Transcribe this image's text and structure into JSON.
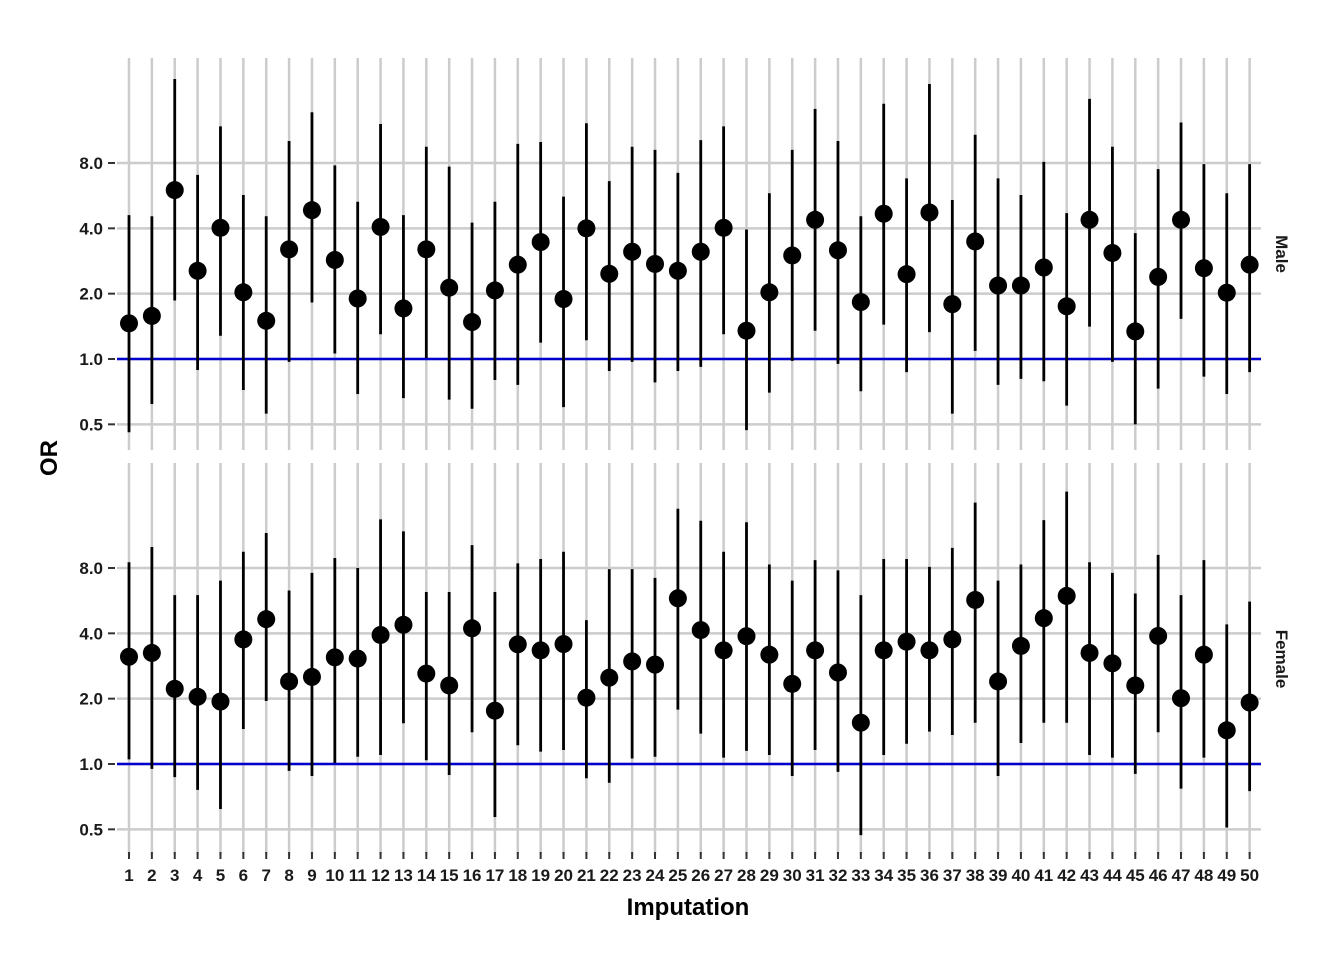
{
  "chart_data": {
    "type": "scatter",
    "subtype": "point-range",
    "title": "",
    "xlabel": "Imputation",
    "ylabel": "OR",
    "y_scale": "log2",
    "y_ticks": [
      0.5,
      1.0,
      2.0,
      4.0,
      8.0
    ],
    "y_tick_labels": [
      "0.5",
      "1.0",
      "2.0",
      "4.0",
      "8.0"
    ],
    "ylim": [
      0.42,
      25
    ],
    "x_categories": [
      "1",
      "2",
      "3",
      "4",
      "5",
      "6",
      "7",
      "8",
      "9",
      "10",
      "11",
      "12",
      "13",
      "14",
      "15",
      "16",
      "17",
      "18",
      "19",
      "20",
      "21",
      "22",
      "23",
      "24",
      "25",
      "26",
      "27",
      "28",
      "29",
      "30",
      "31",
      "32",
      "33",
      "34",
      "35",
      "36",
      "37",
      "38",
      "39",
      "40",
      "41",
      "42",
      "43",
      "44",
      "45",
      "46",
      "47",
      "48",
      "49",
      "50"
    ],
    "reference_line": {
      "y": 1.0,
      "color": "#0000CC"
    },
    "grid": true,
    "point_color": "#000000",
    "panels": [
      {
        "strip": "Male",
        "or": [
          1.46,
          1.58,
          6.0,
          2.55,
          4.02,
          2.03,
          1.5,
          3.2,
          4.85,
          2.86,
          1.9,
          4.06,
          1.71,
          3.2,
          2.13,
          1.48,
          2.07,
          2.72,
          3.46,
          1.89,
          4.0,
          2.47,
          3.12,
          2.74,
          2.55,
          3.12,
          4.02,
          1.35,
          2.03,
          3.0,
          4.38,
          3.17,
          1.83,
          4.67,
          2.46,
          4.73,
          1.79,
          3.48,
          2.18,
          2.18,
          2.64,
          1.75,
          4.38,
          3.08,
          1.34,
          2.39,
          4.38,
          2.62,
          2.02,
          2.72
        ],
        "lower": [
          0.46,
          0.62,
          1.86,
          0.89,
          1.28,
          0.72,
          0.56,
          0.97,
          1.82,
          1.06,
          0.69,
          1.3,
          0.66,
          1.01,
          0.65,
          0.59,
          0.8,
          0.76,
          1.19,
          0.6,
          1.22,
          0.88,
          0.97,
          0.78,
          0.88,
          0.92,
          1.3,
          0.47,
          0.7,
          0.98,
          1.35,
          0.95,
          0.71,
          1.44,
          0.87,
          1.33,
          0.56,
          1.09,
          0.76,
          0.81,
          0.79,
          0.61,
          1.41,
          0.97,
          0.5,
          0.73,
          1.53,
          0.83,
          0.69,
          0.87
        ],
        "upper": [
          4.6,
          4.55,
          19.5,
          7.05,
          11.8,
          5.7,
          4.55,
          10.1,
          13.7,
          7.8,
          5.3,
          12.1,
          4.6,
          9.5,
          7.7,
          4.25,
          5.3,
          9.8,
          10.0,
          5.6,
          12.2,
          6.6,
          9.5,
          9.2,
          7.2,
          10.2,
          11.8,
          3.95,
          5.8,
          9.2,
          14.2,
          10.1,
          4.55,
          15.0,
          6.8,
          18.5,
          5.4,
          10.8,
          6.8,
          5.7,
          8.1,
          4.7,
          15.8,
          9.5,
          3.8,
          7.5,
          12.3,
          7.9,
          5.8,
          7.9
        ]
      },
      {
        "strip": "Female",
        "or": [
          3.12,
          3.25,
          2.22,
          2.04,
          1.94,
          3.75,
          4.65,
          2.4,
          2.52,
          3.1,
          3.06,
          3.93,
          4.38,
          2.61,
          2.3,
          4.22,
          1.76,
          3.56,
          3.34,
          3.57,
          2.02,
          2.5,
          2.97,
          2.87,
          5.8,
          4.14,
          3.34,
          3.88,
          3.19,
          2.34,
          3.34,
          2.64,
          1.55,
          3.34,
          3.66,
          3.34,
          3.75,
          5.7,
          2.4,
          3.5,
          4.7,
          5.95,
          3.25,
          2.91,
          2.3,
          3.89,
          2.01,
          3.19,
          1.43,
          1.92
        ],
        "lower": [
          1.05,
          0.95,
          0.87,
          0.76,
          0.62,
          1.45,
          1.95,
          0.93,
          0.88,
          1.01,
          1.08,
          1.1,
          1.54,
          1.04,
          0.89,
          1.4,
          0.57,
          1.22,
          1.14,
          1.16,
          0.86,
          0.82,
          1.06,
          1.08,
          1.78,
          1.38,
          1.07,
          1.15,
          1.1,
          0.88,
          1.16,
          0.92,
          0.47,
          1.1,
          1.24,
          1.41,
          1.36,
          1.55,
          0.88,
          1.25,
          1.55,
          1.55,
          1.1,
          1.07,
          0.9,
          1.4,
          0.77,
          1.07,
          0.51,
          0.75
        ],
        "upper": [
          8.5,
          10.0,
          6.0,
          6.0,
          7.0,
          9.5,
          11.6,
          6.3,
          7.6,
          8.9,
          8.0,
          13.4,
          11.8,
          6.2,
          6.2,
          10.2,
          6.2,
          8.4,
          8.8,
          9.5,
          4.6,
          7.9,
          7.9,
          7.2,
          15.0,
          13.2,
          9.5,
          13.0,
          8.3,
          7.0,
          8.7,
          7.8,
          6.0,
          8.8,
          8.8,
          8.1,
          9.9,
          16.0,
          7.0,
          8.3,
          13.3,
          18.0,
          8.5,
          7.6,
          6.1,
          9.2,
          6.0,
          8.7,
          4.4,
          5.6
        ]
      }
    ]
  }
}
